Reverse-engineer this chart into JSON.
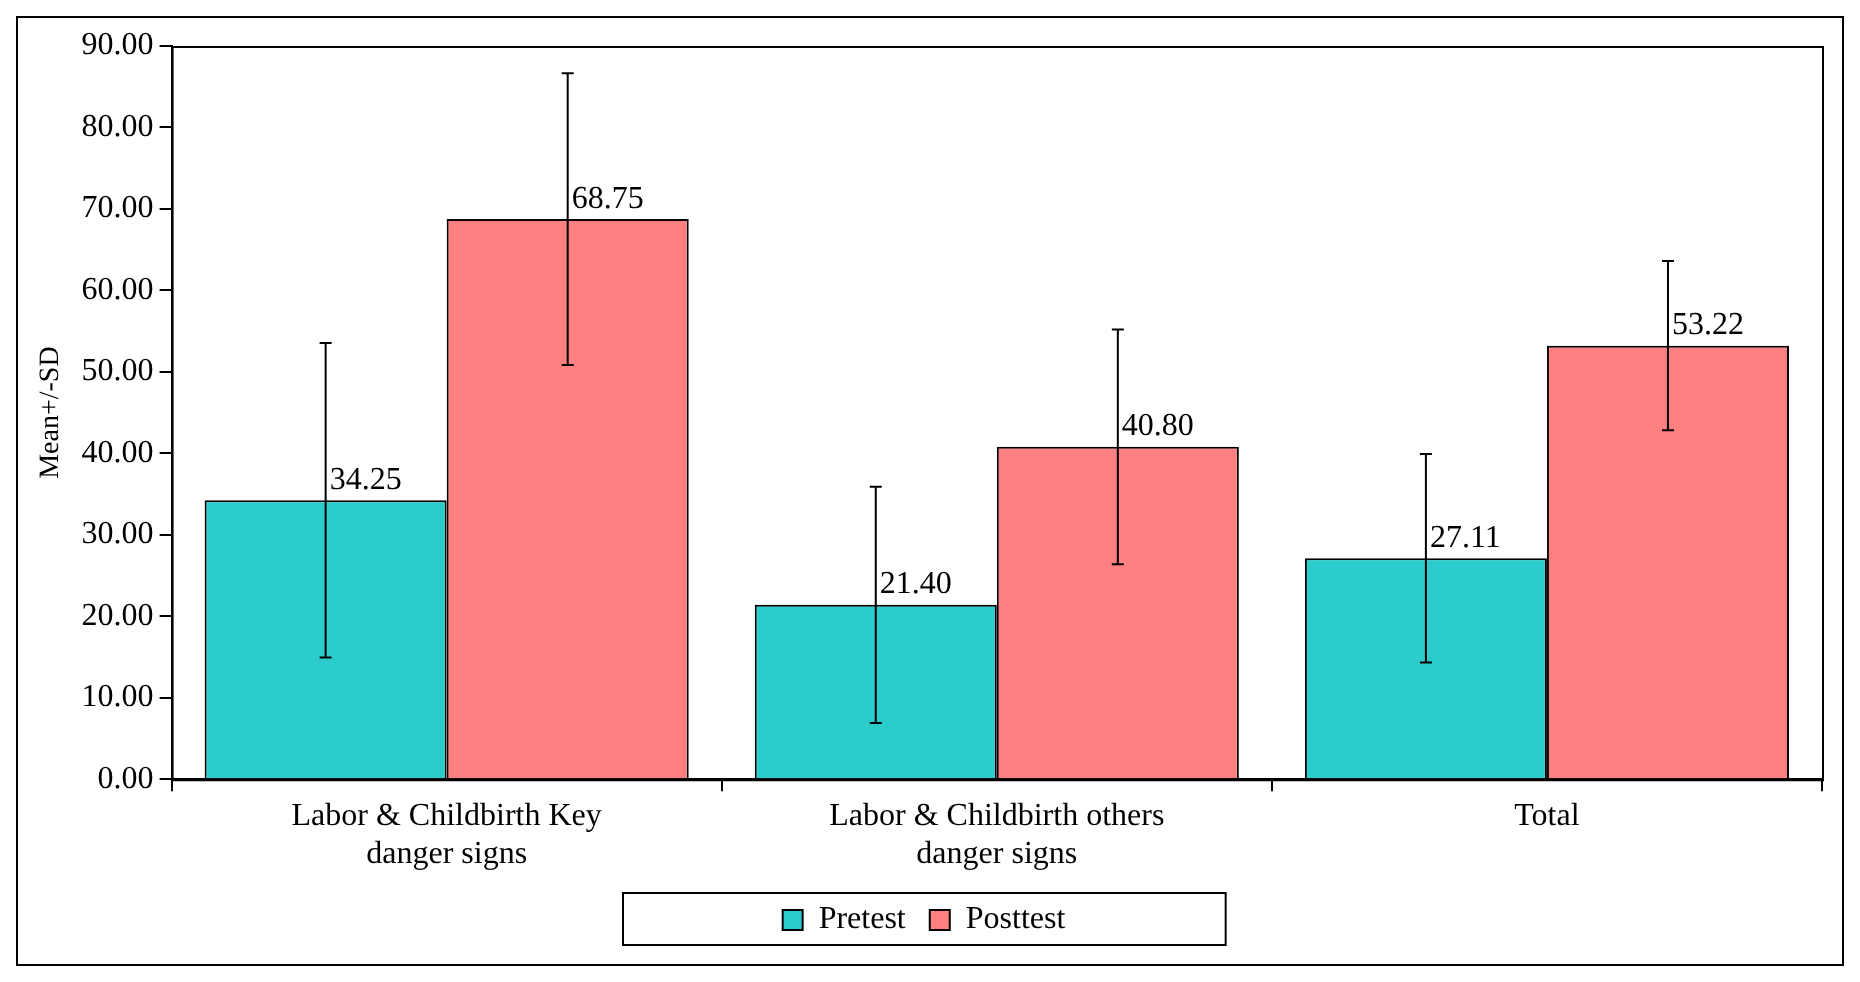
{
  "chart_data": {
    "type": "bar",
    "ylabel": "Mean+/-SD",
    "categories": [
      "Labor & Childbirth Key danger signs",
      "Labor & Childbirth others danger signs",
      "Total"
    ],
    "series": [
      {
        "name": "Pretest",
        "color": "#2ccccc",
        "values": [
          34.25,
          21.4,
          27.11
        ],
        "value_labels": [
          "34.25",
          "21.40",
          "27.11"
        ],
        "errors": [
          19.3,
          14.5,
          12.8
        ]
      },
      {
        "name": "Posttest",
        "color": "#ff8080",
        "values": [
          68.75,
          40.8,
          53.22
        ],
        "value_labels": [
          "68.75",
          "40.80",
          "53.22"
        ],
        "errors": [
          17.9,
          14.4,
          10.4
        ]
      }
    ],
    "ylim": [
      0,
      90
    ],
    "yticks": [
      {
        "value": 0,
        "label": "0.00"
      },
      {
        "value": 10,
        "label": "10.00"
      },
      {
        "value": 20,
        "label": "20.00"
      },
      {
        "value": 30,
        "label": "30.00"
      },
      {
        "value": 40,
        "label": "40.00"
      },
      {
        "value": 50,
        "label": "50.00"
      },
      {
        "value": 60,
        "label": "60.00"
      },
      {
        "value": 70,
        "label": "70.00"
      },
      {
        "value": 80,
        "label": "80.00"
      },
      {
        "value": 90,
        "label": "90.00"
      }
    ],
    "grid": false,
    "legend": "bottom"
  }
}
